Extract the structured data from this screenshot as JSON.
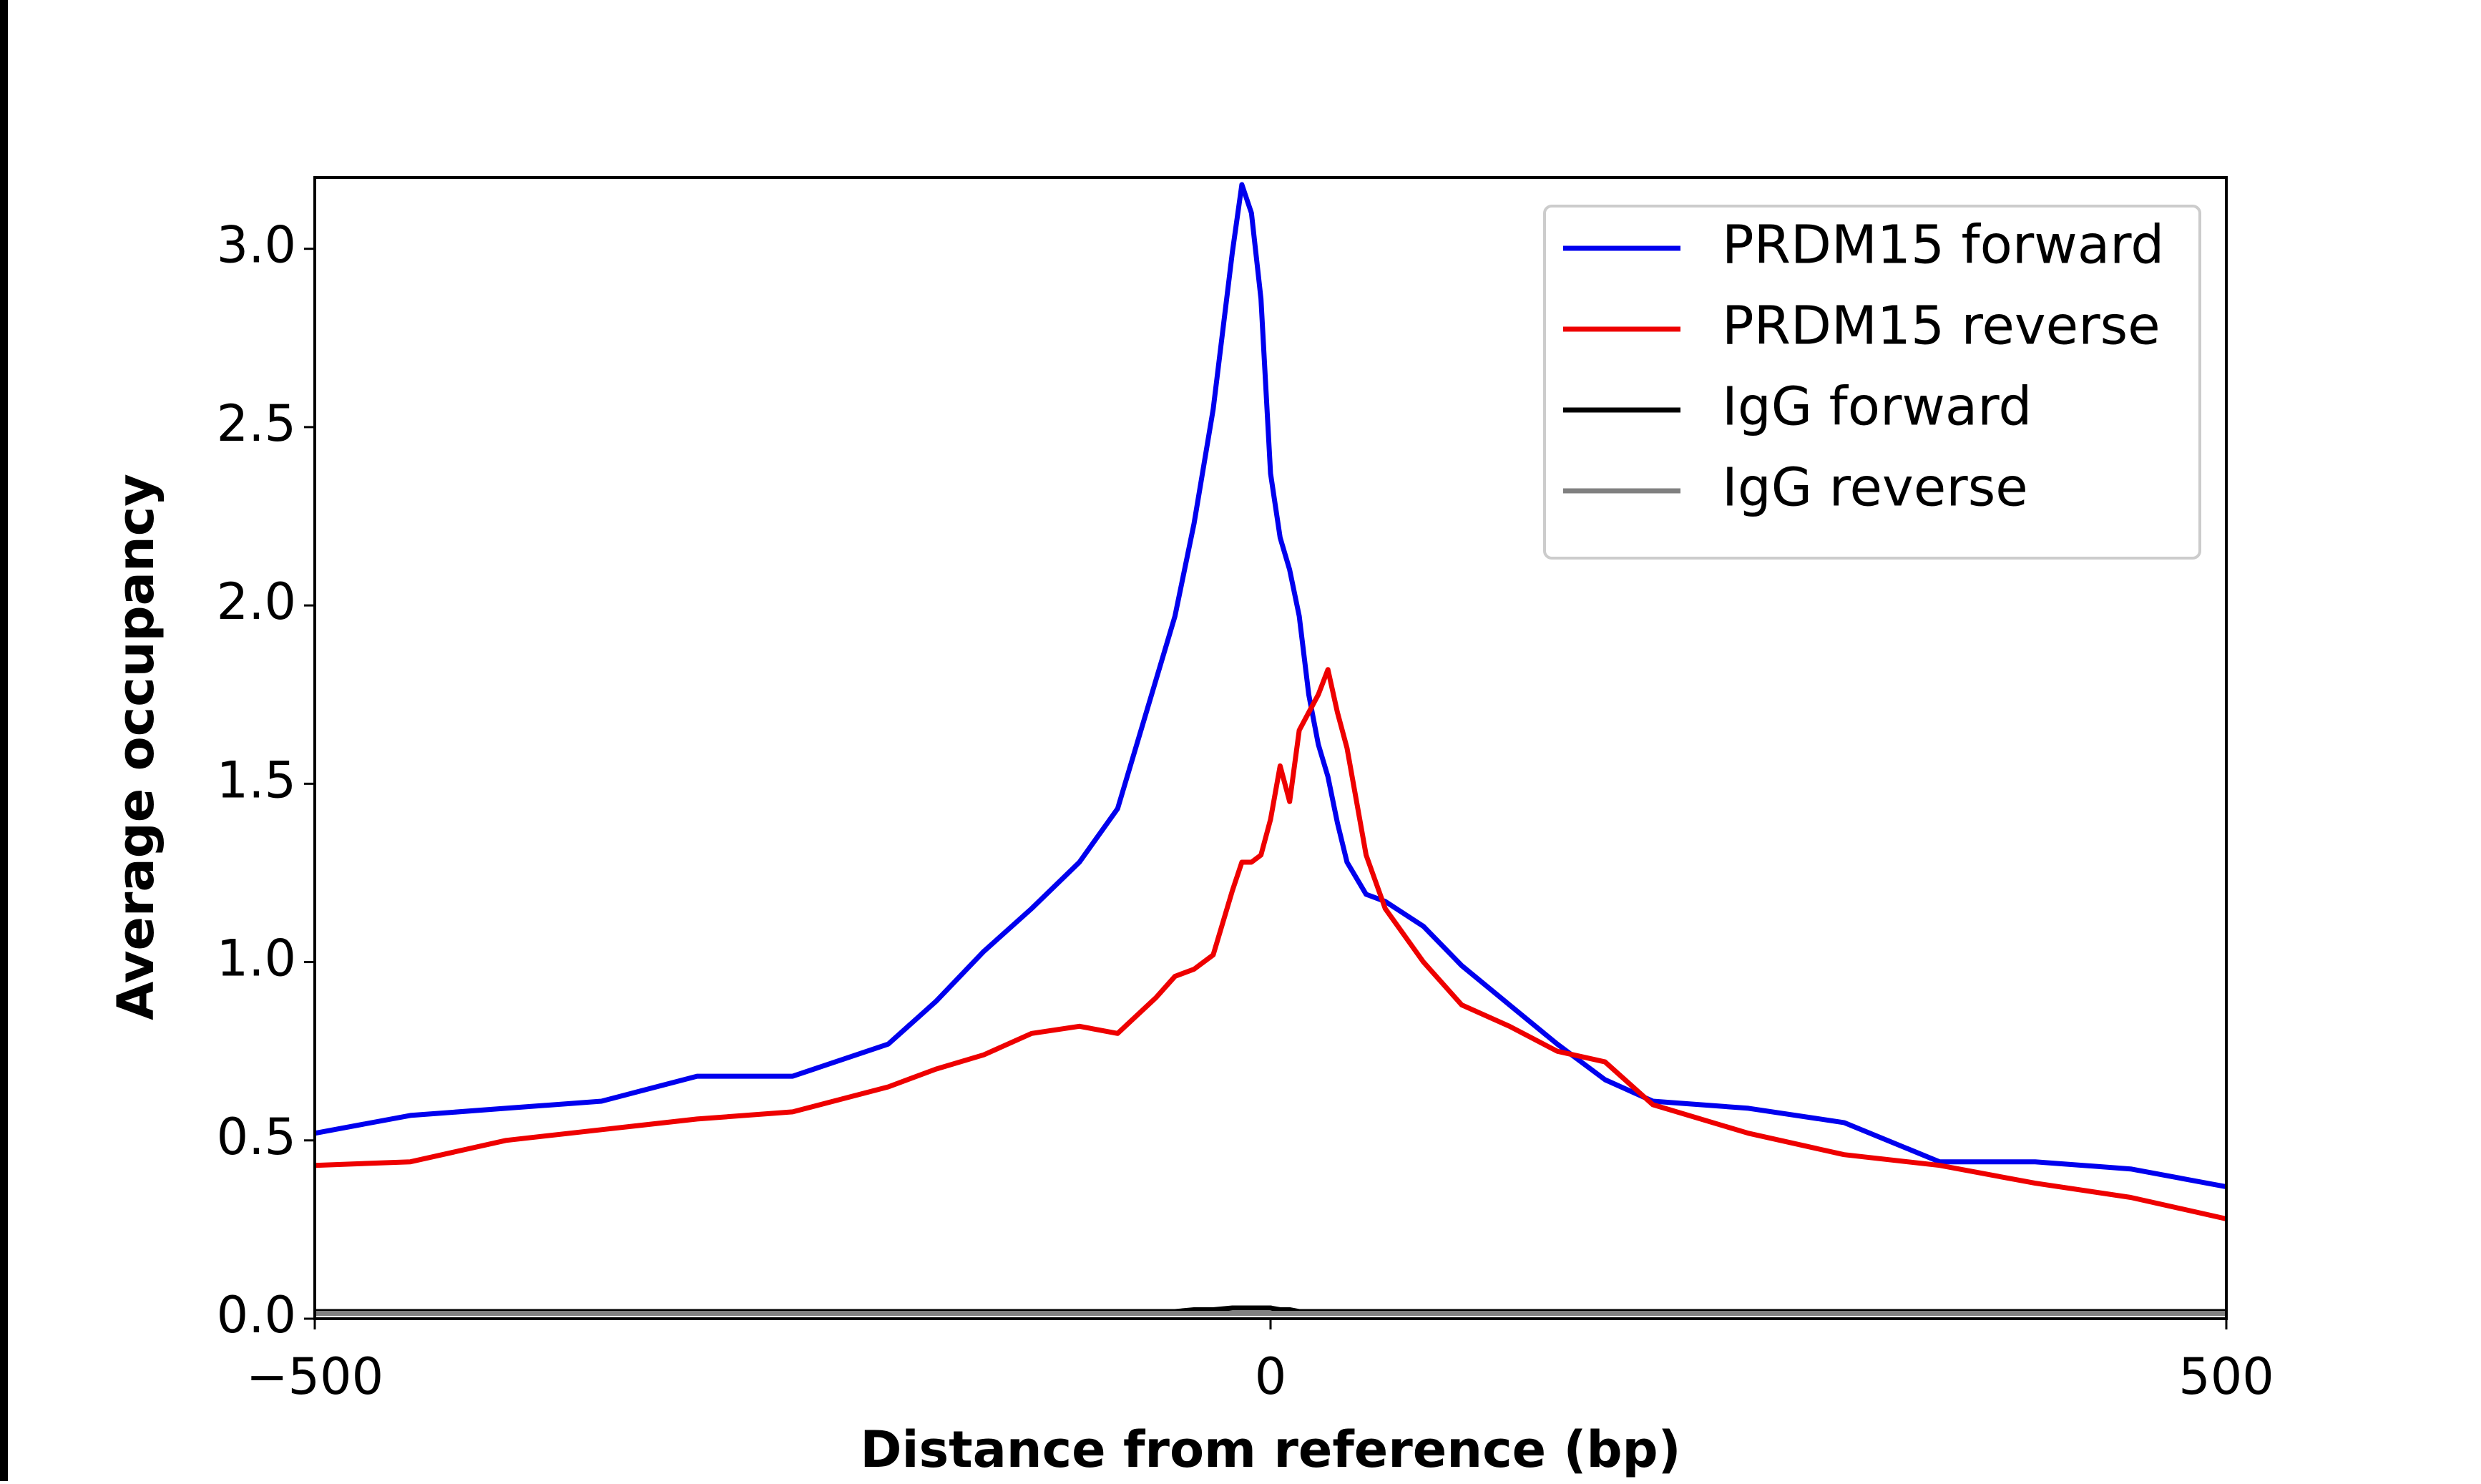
{
  "chart_data": {
    "type": "line",
    "x_label": "Distance from reference (bp)",
    "y_label": "Average occupancy",
    "x": [
      -500,
      -450,
      -400,
      -350,
      -300,
      -250,
      -200,
      -175,
      -150,
      -125,
      -100,
      -80,
      -60,
      -50,
      -40,
      -30,
      -20,
      -15,
      -10,
      -5,
      0,
      5,
      10,
      15,
      20,
      25,
      30,
      35,
      40,
      50,
      60,
      80,
      100,
      125,
      150,
      175,
      200,
      250,
      300,
      350,
      400,
      450,
      500
    ],
    "series": [
      {
        "name": "PRDM15 forward",
        "color": "#0000ee",
        "values": [
          0.52,
          0.57,
          0.59,
          0.61,
          0.68,
          0.68,
          0.77,
          0.89,
          1.03,
          1.15,
          1.28,
          1.43,
          1.79,
          1.97,
          2.23,
          2.55,
          2.99,
          3.18,
          3.1,
          2.86,
          2.37,
          2.19,
          2.1,
          1.97,
          1.75,
          1.61,
          1.52,
          1.39,
          1.28,
          1.19,
          1.17,
          1.1,
          0.99,
          0.88,
          0.77,
          0.67,
          0.61,
          0.59,
          0.55,
          0.44,
          0.44,
          0.42,
          0.37
        ]
      },
      {
        "name": "PRDM15 reverse",
        "color": "#ee0000",
        "values": [
          0.43,
          0.44,
          0.5,
          0.53,
          0.56,
          0.58,
          0.65,
          0.7,
          0.74,
          0.8,
          0.82,
          0.8,
          0.9,
          0.96,
          0.98,
          1.02,
          1.2,
          1.28,
          1.28,
          1.3,
          1.4,
          1.55,
          1.45,
          1.65,
          1.7,
          1.75,
          1.82,
          1.7,
          1.6,
          1.3,
          1.15,
          1.0,
          0.88,
          0.82,
          0.75,
          0.72,
          0.6,
          0.52,
          0.46,
          0.43,
          0.38,
          0.34,
          0.28
        ]
      },
      {
        "name": "IgG forward",
        "color": "#000000",
        "values": [
          0.02,
          0.02,
          0.02,
          0.02,
          0.02,
          0.02,
          0.02,
          0.02,
          0.02,
          0.02,
          0.02,
          0.02,
          0.02,
          0.02,
          0.025,
          0.025,
          0.03,
          0.03,
          0.03,
          0.03,
          0.03,
          0.025,
          0.025,
          0.02,
          0.02,
          0.02,
          0.02,
          0.02,
          0.02,
          0.02,
          0.02,
          0.02,
          0.02,
          0.02,
          0.02,
          0.02,
          0.02,
          0.02,
          0.02,
          0.02,
          0.02,
          0.02,
          0.02
        ]
      },
      {
        "name": "IgG reverse",
        "color": "#808080",
        "values": [
          0.015,
          0.015,
          0.015,
          0.015,
          0.015,
          0.015,
          0.015,
          0.015,
          0.015,
          0.015,
          0.015,
          0.015,
          0.015,
          0.015,
          0.015,
          0.015,
          0.015,
          0.015,
          0.015,
          0.015,
          0.015,
          0.015,
          0.015,
          0.015,
          0.015,
          0.015,
          0.015,
          0.015,
          0.015,
          0.015,
          0.015,
          0.015,
          0.015,
          0.015,
          0.015,
          0.015,
          0.015,
          0.015,
          0.015,
          0.015,
          0.015,
          0.015,
          0.015
        ]
      }
    ],
    "xlim": [
      -500,
      500
    ],
    "ylim": [
      0,
      3.2
    ],
    "xticks": [
      {
        "value": -500,
        "label": "−500"
      },
      0,
      500
    ],
    "yticks": [
      {
        "value": 0,
        "label": "0.0"
      },
      0.5,
      {
        "value": 1,
        "label": "1.0"
      },
      1.5,
      {
        "value": 2,
        "label": "2.0"
      },
      2.5,
      {
        "value": 3,
        "label": "3.0"
      }
    ],
    "legend_position": "upper right"
  }
}
